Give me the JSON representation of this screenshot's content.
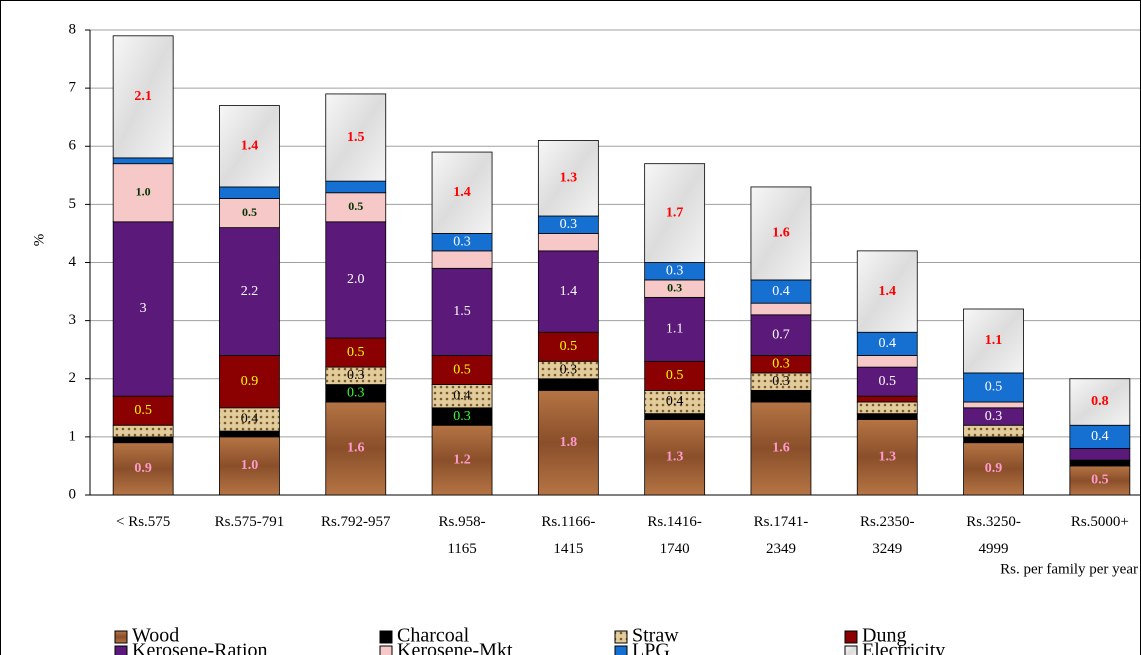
{
  "chart_data": {
    "type": "stacked_bar",
    "y_label": "%",
    "x_label": "Rs. per family per year",
    "categories": [
      "< Rs.575",
      "Rs.575-791",
      "Rs.792-957",
      "Rs.958-\n1165",
      "Rs.1166-\n1415",
      "Rs.1416-\n1740",
      "Rs.1741-\n2349",
      "Rs.2350-\n3249",
      "Rs.3250-\n4999",
      "Rs.5000+"
    ],
    "ylim": [
      0,
      8
    ],
    "yticks": [
      0,
      1,
      2,
      3,
      4,
      5,
      6,
      7,
      8
    ],
    "grid": true,
    "series": [
      {
        "name": "Wood",
        "color": "#9c5c32",
        "label_color": "#ff99cc",
        "values": [
          0.9,
          1.0,
          1.6,
          1.2,
          1.8,
          1.3,
          1.6,
          1.3,
          0.9,
          0.5
        ],
        "value_labels": [
          "0.9",
          "1.0",
          "1.6",
          "1.2",
          "1.8",
          "1.3",
          "1.6",
          "1.3",
          "0.9",
          "0.5"
        ]
      },
      {
        "name": "Charcoal",
        "color": "#000000",
        "label_color": "#33ff33",
        "values": [
          0.1,
          0.1,
          0.3,
          0.3,
          0.2,
          0.1,
          0.2,
          0.1,
          0.1,
          0.1
        ],
        "value_labels": [
          null,
          null,
          "0.3",
          "0.3",
          null,
          null,
          null,
          null,
          null,
          null
        ]
      },
      {
        "name": "Straw",
        "color": "#d8bf8c",
        "label_color": "#000000",
        "values": [
          0.2,
          0.4,
          0.3,
          0.4,
          0.3,
          0.4,
          0.3,
          0.2,
          0.2,
          0
        ],
        "value_labels": [
          null,
          "0.4",
          "0.3",
          "0.4",
          "0.3",
          "0.4",
          "0.3",
          null,
          null,
          null
        ]
      },
      {
        "name": "Dung",
        "color": "#8b0000",
        "label_color": "#ffff00",
        "values": [
          0.5,
          0.9,
          0.5,
          0.5,
          0.5,
          0.5,
          0.3,
          0.1,
          0,
          0
        ],
        "value_labels": [
          "0.5",
          "0.9",
          "0.5",
          "0.5",
          "0.5",
          "0.5",
          "0.3",
          null,
          null,
          null
        ]
      },
      {
        "name": "Kerosene-Ration",
        "color": "#5b1a7a",
        "label_color": "#ffffff",
        "values": [
          3,
          2.2,
          2.0,
          1.5,
          1.4,
          1.1,
          0.7,
          0.5,
          0.3,
          0.2
        ],
        "value_labels": [
          "3",
          "2.2",
          "2.0",
          "1.5",
          "1.4",
          "1.1",
          "0.7",
          "0.5",
          "0.3",
          null
        ]
      },
      {
        "name": "Kerosene-Mkt",
        "color": "#f6c8c8",
        "label_color": "#003300",
        "values": [
          1.0,
          0.5,
          0.5,
          0.3,
          0.3,
          0.3,
          0.2,
          0.2,
          0.1,
          0
        ],
        "value_labels": [
          "1.0",
          "0.5",
          "0.5",
          null,
          null,
          "0.3",
          null,
          null,
          null,
          null
        ]
      },
      {
        "name": "LPG",
        "color": "#1570d2",
        "label_color": "#ffffff",
        "values": [
          0.1,
          0.2,
          0.2,
          0.3,
          0.3,
          0.3,
          0.4,
          0.4,
          0.5,
          0.4
        ],
        "value_labels": [
          null,
          null,
          null,
          "0.3",
          "0.3",
          "0.3",
          "0.4",
          "0.4",
          "0.5",
          "0.4"
        ]
      },
      {
        "name": "Electricity",
        "color": "#eeeeee",
        "label_color": "#ff0000",
        "values": [
          2.1,
          1.4,
          1.5,
          1.4,
          1.3,
          1.7,
          1.6,
          1.4,
          1.1,
          0.8
        ],
        "value_labels": [
          "2.1",
          "1.4",
          "1.5",
          "1.4",
          "1.3",
          "1.7",
          "1.6",
          "1.4",
          "1.1",
          "0.8"
        ]
      }
    ]
  }
}
